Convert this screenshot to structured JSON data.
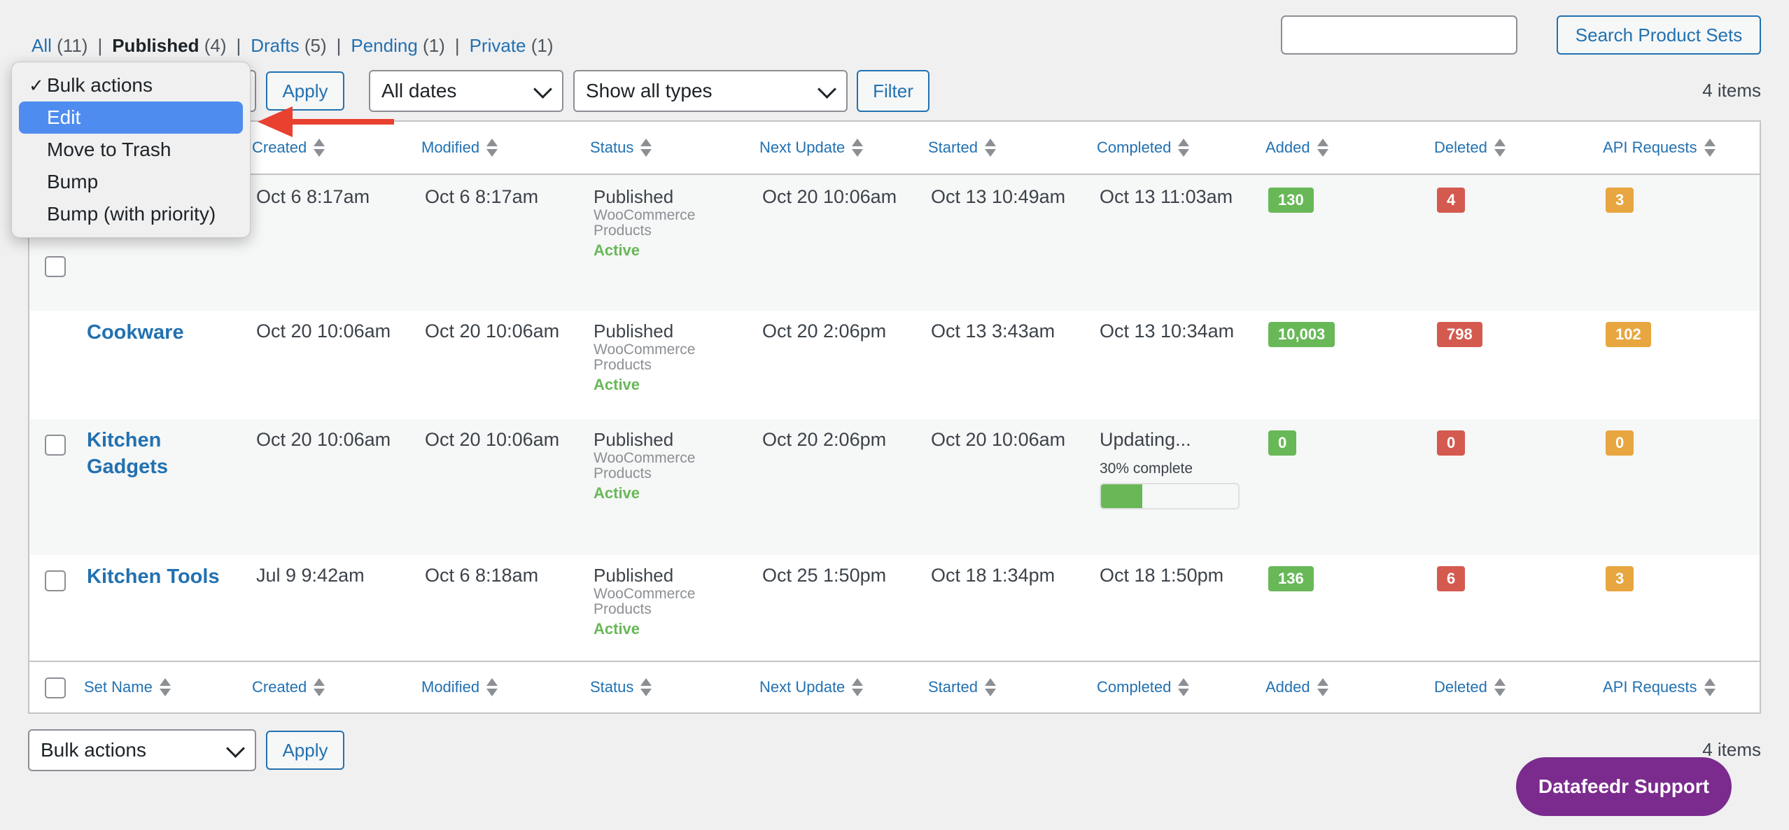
{
  "filters": {
    "all": {
      "label": "All",
      "count": "(11)"
    },
    "published": {
      "label": "Published",
      "count": "(4)"
    },
    "drafts": {
      "label": "Drafts",
      "count": "(5)"
    },
    "pending": {
      "label": "Pending",
      "count": "(1)"
    },
    "private": {
      "label": "Private",
      "count": "(1)"
    }
  },
  "search": {
    "value": "",
    "button": "Search Product Sets"
  },
  "top_actions": {
    "apply": "Apply",
    "dates": "All dates",
    "types": "Show all types",
    "filter": "Filter",
    "items": "4 items"
  },
  "bulk_menu": {
    "items": [
      "Bulk actions",
      "Edit",
      "Move to Trash",
      "Bump",
      "Bump (with priority)"
    ],
    "checked": "Bulk actions",
    "highlighted": "Edit"
  },
  "columns": [
    "Set Name",
    "Created",
    "Modified",
    "Status",
    "Next Update",
    "Started",
    "Completed",
    "Added",
    "Deleted",
    "API Requests"
  ],
  "rows": [
    {
      "name": "",
      "created": "Oct 6 8:17am",
      "modified": "Oct 6 8:17am",
      "status": "Published",
      "type1": "WooCommerce",
      "type2": "Products",
      "state": "Active",
      "next_update": "Oct 20 10:06am",
      "started": "Oct 13 10:49am",
      "completed": "Oct 13 11:03am",
      "added": "130",
      "deleted": "4",
      "api": "3"
    },
    {
      "name": "Cookware",
      "created": "Oct 20 10:06am",
      "modified": "Oct 20 10:06am",
      "status": "Published",
      "type1": "WooCommerce",
      "type2": "Products",
      "state": "Active",
      "next_update": "Oct 20 2:06pm",
      "started": "Oct 13 3:43am",
      "completed": "Oct 13 10:34am",
      "added": "10,003",
      "deleted": "798",
      "api": "102"
    },
    {
      "name_line1": "Kitchen",
      "name_line2": "Gadgets",
      "created": "Oct 20 10:06am",
      "modified": "Oct 20 10:06am",
      "status": "Published",
      "type1": "WooCommerce",
      "type2": "Products",
      "state": "Active",
      "next_update": "Oct 20 2:06pm",
      "started": "Oct 20 10:06am",
      "completed": "Updating...",
      "progress_text": "30% complete",
      "progress": 0.3,
      "added": "0",
      "deleted": "0",
      "api": "0"
    },
    {
      "name": "Kitchen Tools",
      "created": "Jul 9 9:42am",
      "modified": "Oct 6 8:18am",
      "status": "Published",
      "type1": "WooCommerce",
      "type2": "Products",
      "state": "Active",
      "next_update": "Oct 25 1:50pm",
      "started": "Oct 18 1:34pm",
      "completed": "Oct 18 1:50pm",
      "added": "136",
      "deleted": "6",
      "api": "3"
    }
  ],
  "bottom_actions": {
    "bulk": "Bulk actions",
    "apply": "Apply",
    "items": "4 items"
  },
  "support_button": "Datafeedr Support",
  "colors": {
    "link": "#2271b1",
    "added": "#68b858",
    "deleted": "#d45a4f",
    "api": "#e8a640",
    "support": "#7b2b8e",
    "highlight": "#4f8cf0"
  }
}
